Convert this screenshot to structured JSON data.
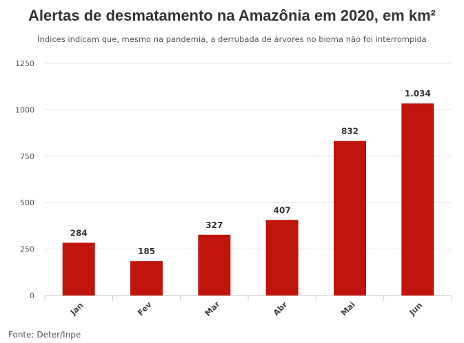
{
  "chart_data": {
    "type": "bar",
    "title": "Alertas de desmatamento na Amazônia em 2020, em km²",
    "subtitle": "Índices indicam que, mesmo na pandemia, a derrubada de árvores no bioma não foi interrompida",
    "categories": [
      "Jan",
      "Fev",
      "Mar",
      "Abr",
      "Mai",
      "Jun"
    ],
    "values": [
      284,
      185,
      327,
      407,
      832,
      1034
    ],
    "value_labels": [
      "284",
      "185",
      "327",
      "407",
      "832",
      "1.034"
    ],
    "ylim": [
      0,
      1250
    ],
    "yticks": [
      0,
      250,
      500,
      750,
      1000,
      1250
    ],
    "xlabel": "",
    "ylabel": "",
    "grid": true,
    "legend": "none",
    "bar_color": "#c0150d",
    "source": "Fonte: Deter/Inpe"
  }
}
